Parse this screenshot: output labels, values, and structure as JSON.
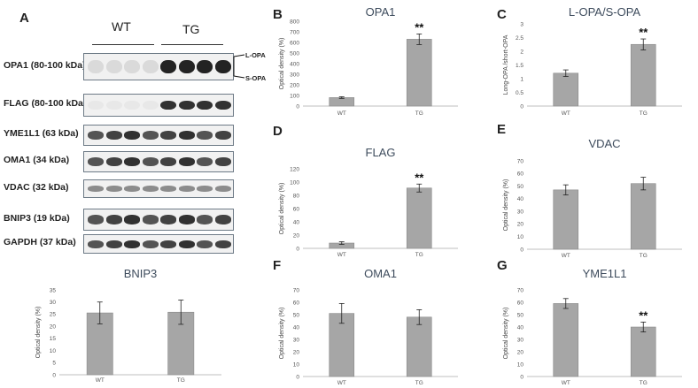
{
  "figure": {
    "panel_letters": [
      "A",
      "B",
      "C",
      "D",
      "E",
      "F",
      "G"
    ],
    "group_labels": [
      "WT",
      "TG"
    ],
    "blot_rows": [
      {
        "label": "OPA1 (80-100 kDa)",
        "pattern": "opa1"
      },
      {
        "label": "FLAG (80-100 kDa)",
        "pattern": "flag"
      },
      {
        "label": "YME1L1 (63 kDa)",
        "pattern": "even"
      },
      {
        "label": "OMA1 (34 kDa)",
        "pattern": "even"
      },
      {
        "label": "VDAC (32 kDa)",
        "pattern": "faint"
      },
      {
        "label": "BNIP3 (19 kDa)",
        "pattern": "even"
      },
      {
        "label": "GAPDH (37 kDa)",
        "pattern": "even"
      }
    ],
    "opa_markers": [
      "L-OPA",
      "S-OPA"
    ],
    "colors": {
      "bar": "#a6a6a6",
      "bar_edge": "#8a8a8a",
      "title": "#3d4b5c"
    }
  },
  "chart_data": [
    {
      "id": "bnip3",
      "type": "bar",
      "title": "BNIP3",
      "ylabel": "Optical density (%)",
      "categories": [
        "WT",
        "TG"
      ],
      "values": [
        25.5,
        25.8
      ],
      "errors": [
        4.5,
        5
      ],
      "ylim": [
        0,
        35
      ],
      "yticks": [
        0,
        5,
        10,
        15,
        20,
        25,
        30,
        35
      ],
      "significance": [
        "",
        ""
      ]
    },
    {
      "id": "opa1",
      "type": "bar",
      "title": "OPA1",
      "ylabel": "Optical density (%)",
      "categories": [
        "WT",
        "TG"
      ],
      "values": [
        80,
        630
      ],
      "errors": [
        8,
        50
      ],
      "ylim": [
        0,
        800
      ],
      "yticks": [
        0,
        100,
        200,
        300,
        400,
        500,
        600,
        700,
        800
      ],
      "significance": [
        "",
        "**"
      ]
    },
    {
      "id": "lopa",
      "type": "bar",
      "title": "L-OPA/S-OPA",
      "ylabel": "Long-OPA /short-OPA",
      "categories": [
        "WT",
        "TG"
      ],
      "values": [
        1.2,
        2.25
      ],
      "errors": [
        0.12,
        0.2
      ],
      "ylim": [
        0,
        3
      ],
      "yticks": [
        0,
        0.5,
        1,
        1.5,
        2,
        2.5,
        3
      ],
      "significance": [
        "",
        "**"
      ]
    },
    {
      "id": "flag",
      "type": "bar",
      "title": "FLAG",
      "ylabel": "Optical density (%)",
      "categories": [
        "WT",
        "TG"
      ],
      "values": [
        8,
        91
      ],
      "errors": [
        2,
        6
      ],
      "ylim": [
        0,
        120
      ],
      "yticks": [
        0,
        20,
        40,
        60,
        80,
        100,
        120
      ],
      "significance": [
        "",
        "**"
      ]
    },
    {
      "id": "vdac",
      "type": "bar",
      "title": "VDAC",
      "ylabel": "Optical density (%)",
      "categories": [
        "WT",
        "TG"
      ],
      "values": [
        47,
        52
      ],
      "errors": [
        4,
        5
      ],
      "ylim": [
        0,
        70
      ],
      "yticks": [
        0,
        10,
        20,
        30,
        40,
        50,
        60,
        70
      ],
      "significance": [
        "",
        ""
      ]
    },
    {
      "id": "oma1",
      "type": "bar",
      "title": "OMA1",
      "ylabel": "Optical density (%)",
      "categories": [
        "WT",
        "TG"
      ],
      "values": [
        51,
        48
      ],
      "errors": [
        8,
        6
      ],
      "ylim": [
        0,
        70
      ],
      "yticks": [
        0,
        10,
        20,
        30,
        40,
        50,
        60,
        70
      ],
      "significance": [
        "",
        ""
      ]
    },
    {
      "id": "yme1l1",
      "type": "bar",
      "title": "YME1L1",
      "ylabel": "Optical density (%)",
      "categories": [
        "WT",
        "TG"
      ],
      "values": [
        59,
        40
      ],
      "errors": [
        4,
        4
      ],
      "ylim": [
        0,
        70
      ],
      "yticks": [
        0,
        10,
        20,
        30,
        40,
        50,
        60,
        70
      ],
      "significance": [
        "",
        "**"
      ]
    }
  ]
}
